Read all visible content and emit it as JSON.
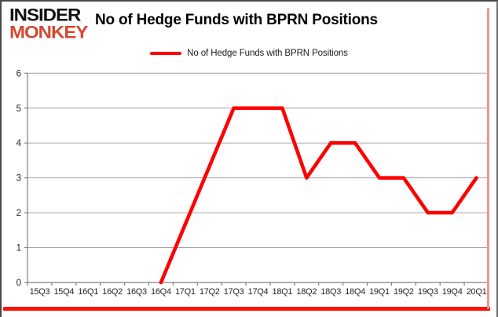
{
  "brand": {
    "line1": "INSIDER",
    "line2": "MONKEY"
  },
  "title": "No of Hedge Funds with BPRN Positions",
  "legend": {
    "label": "No of Hedge Funds with BPRN Positions"
  },
  "colors": {
    "series_red": "#fe0000",
    "brand_red": "#d04a31",
    "accent_bar": "#fb1406",
    "gridline": "#a6a6a6",
    "axis": "#808080",
    "tick_label": "#262626"
  },
  "chart_data": {
    "type": "line",
    "title": "No of Hedge Funds with BPRN Positions",
    "categories": [
      "15Q3",
      "15Q4",
      "16Q1",
      "16Q2",
      "16Q3",
      "16Q4",
      "17Q1",
      "17Q2",
      "17Q3",
      "17Q4",
      "18Q1",
      "18Q2",
      "18Q3",
      "18Q4",
      "19Q1",
      "19Q2",
      "19Q3",
      "19Q4",
      "20Q1"
    ],
    "series": [
      {
        "name": "No of Hedge Funds with BPRN Positions",
        "color": "#fe0000",
        "values": [
          null,
          null,
          null,
          null,
          null,
          0,
          null,
          null,
          5,
          5,
          5,
          3,
          4,
          4,
          3,
          3,
          2,
          2,
          3
        ]
      }
    ],
    "xlabel": "",
    "ylabel": "",
    "ylim": [
      0,
      6
    ],
    "yticks": [
      0,
      1,
      2,
      3,
      4,
      5,
      6
    ],
    "grid": true,
    "legend_position": "top"
  }
}
